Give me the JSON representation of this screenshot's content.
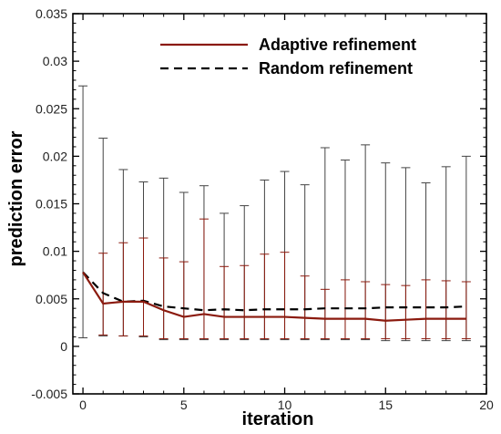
{
  "chart_data": {
    "type": "line",
    "title": "",
    "xlabel": "iteration",
    "ylabel": "prediction error",
    "xlim": [
      -0.5,
      20
    ],
    "ylim": [
      -0.005,
      0.035
    ],
    "x_ticks": [
      0,
      5,
      10,
      15,
      20
    ],
    "x_tick_labels": [
      "0",
      "5",
      "10",
      "15",
      "20"
    ],
    "y_ticks": [
      -0.005,
      0,
      0.005,
      0.01,
      0.015,
      0.02,
      0.025,
      0.03,
      0.035
    ],
    "y_tick_labels": [
      "-0.005",
      "0",
      "0.005",
      "0.01",
      "0.015",
      "0.02",
      "0.025",
      "0.03",
      "0.035"
    ],
    "grid": false,
    "legend_position": "top-right",
    "x": [
      0,
      1,
      2,
      3,
      4,
      5,
      6,
      7,
      8,
      9,
      10,
      11,
      12,
      13,
      14,
      15,
      16,
      17,
      18,
      19
    ],
    "series": [
      {
        "name": "Adaptive refinement",
        "color": "#8b1a0e",
        "line_style": "solid",
        "values": [
          0.0078,
          0.0045,
          0.0047,
          0.0047,
          0.0038,
          0.0031,
          0.0034,
          0.0031,
          0.0031,
          0.0031,
          0.0031,
          0.003,
          0.0029,
          0.0029,
          0.0029,
          0.0027,
          0.0028,
          0.0029,
          0.0029,
          0.0029
        ],
        "error_upper": [
          0.0078,
          0.0098,
          0.0109,
          0.0114,
          0.0093,
          0.0089,
          0.0134,
          0.0084,
          0.0085,
          0.0097,
          0.0099,
          0.0074,
          0.006,
          0.007,
          0.0068,
          0.0065,
          0.0064,
          0.007,
          0.0069,
          0.0068
        ],
        "error_lower": [
          0.0078,
          0.0012,
          0.0011,
          0.0011,
          0.0008,
          0.0008,
          0.0008,
          0.0008,
          0.0008,
          0.0008,
          0.0008,
          0.0008,
          0.0008,
          0.0008,
          0.0008,
          0.0008,
          0.0008,
          0.0008,
          0.0008,
          0.0008
        ]
      },
      {
        "name": "Random refinement",
        "color": "#000000",
        "line_style": "dashed",
        "values": [
          0.0078,
          0.0056,
          0.0047,
          0.0048,
          0.0042,
          0.004,
          0.0038,
          0.0039,
          0.0038,
          0.0039,
          0.0039,
          0.0039,
          0.004,
          0.004,
          0.004,
          0.0041,
          0.0041,
          0.0041,
          0.0041,
          0.0042
        ],
        "error_upper": [
          0.0274,
          0.0219,
          0.0186,
          0.0173,
          0.0177,
          0.0162,
          0.0169,
          0.014,
          0.0148,
          0.0175,
          0.0184,
          0.017,
          0.0209,
          0.0196,
          0.0212,
          0.0193,
          0.0188,
          0.0172,
          0.0189,
          0.02
        ],
        "error_lower": [
          0.0009,
          0.0011,
          0.0011,
          0.001,
          0.0007,
          0.0007,
          0.0007,
          0.0007,
          0.0007,
          0.0007,
          0.0007,
          0.0007,
          0.0007,
          0.0007,
          0.0007,
          0.0006,
          0.0006,
          0.0006,
          0.0006,
          0.0006
        ]
      }
    ]
  }
}
